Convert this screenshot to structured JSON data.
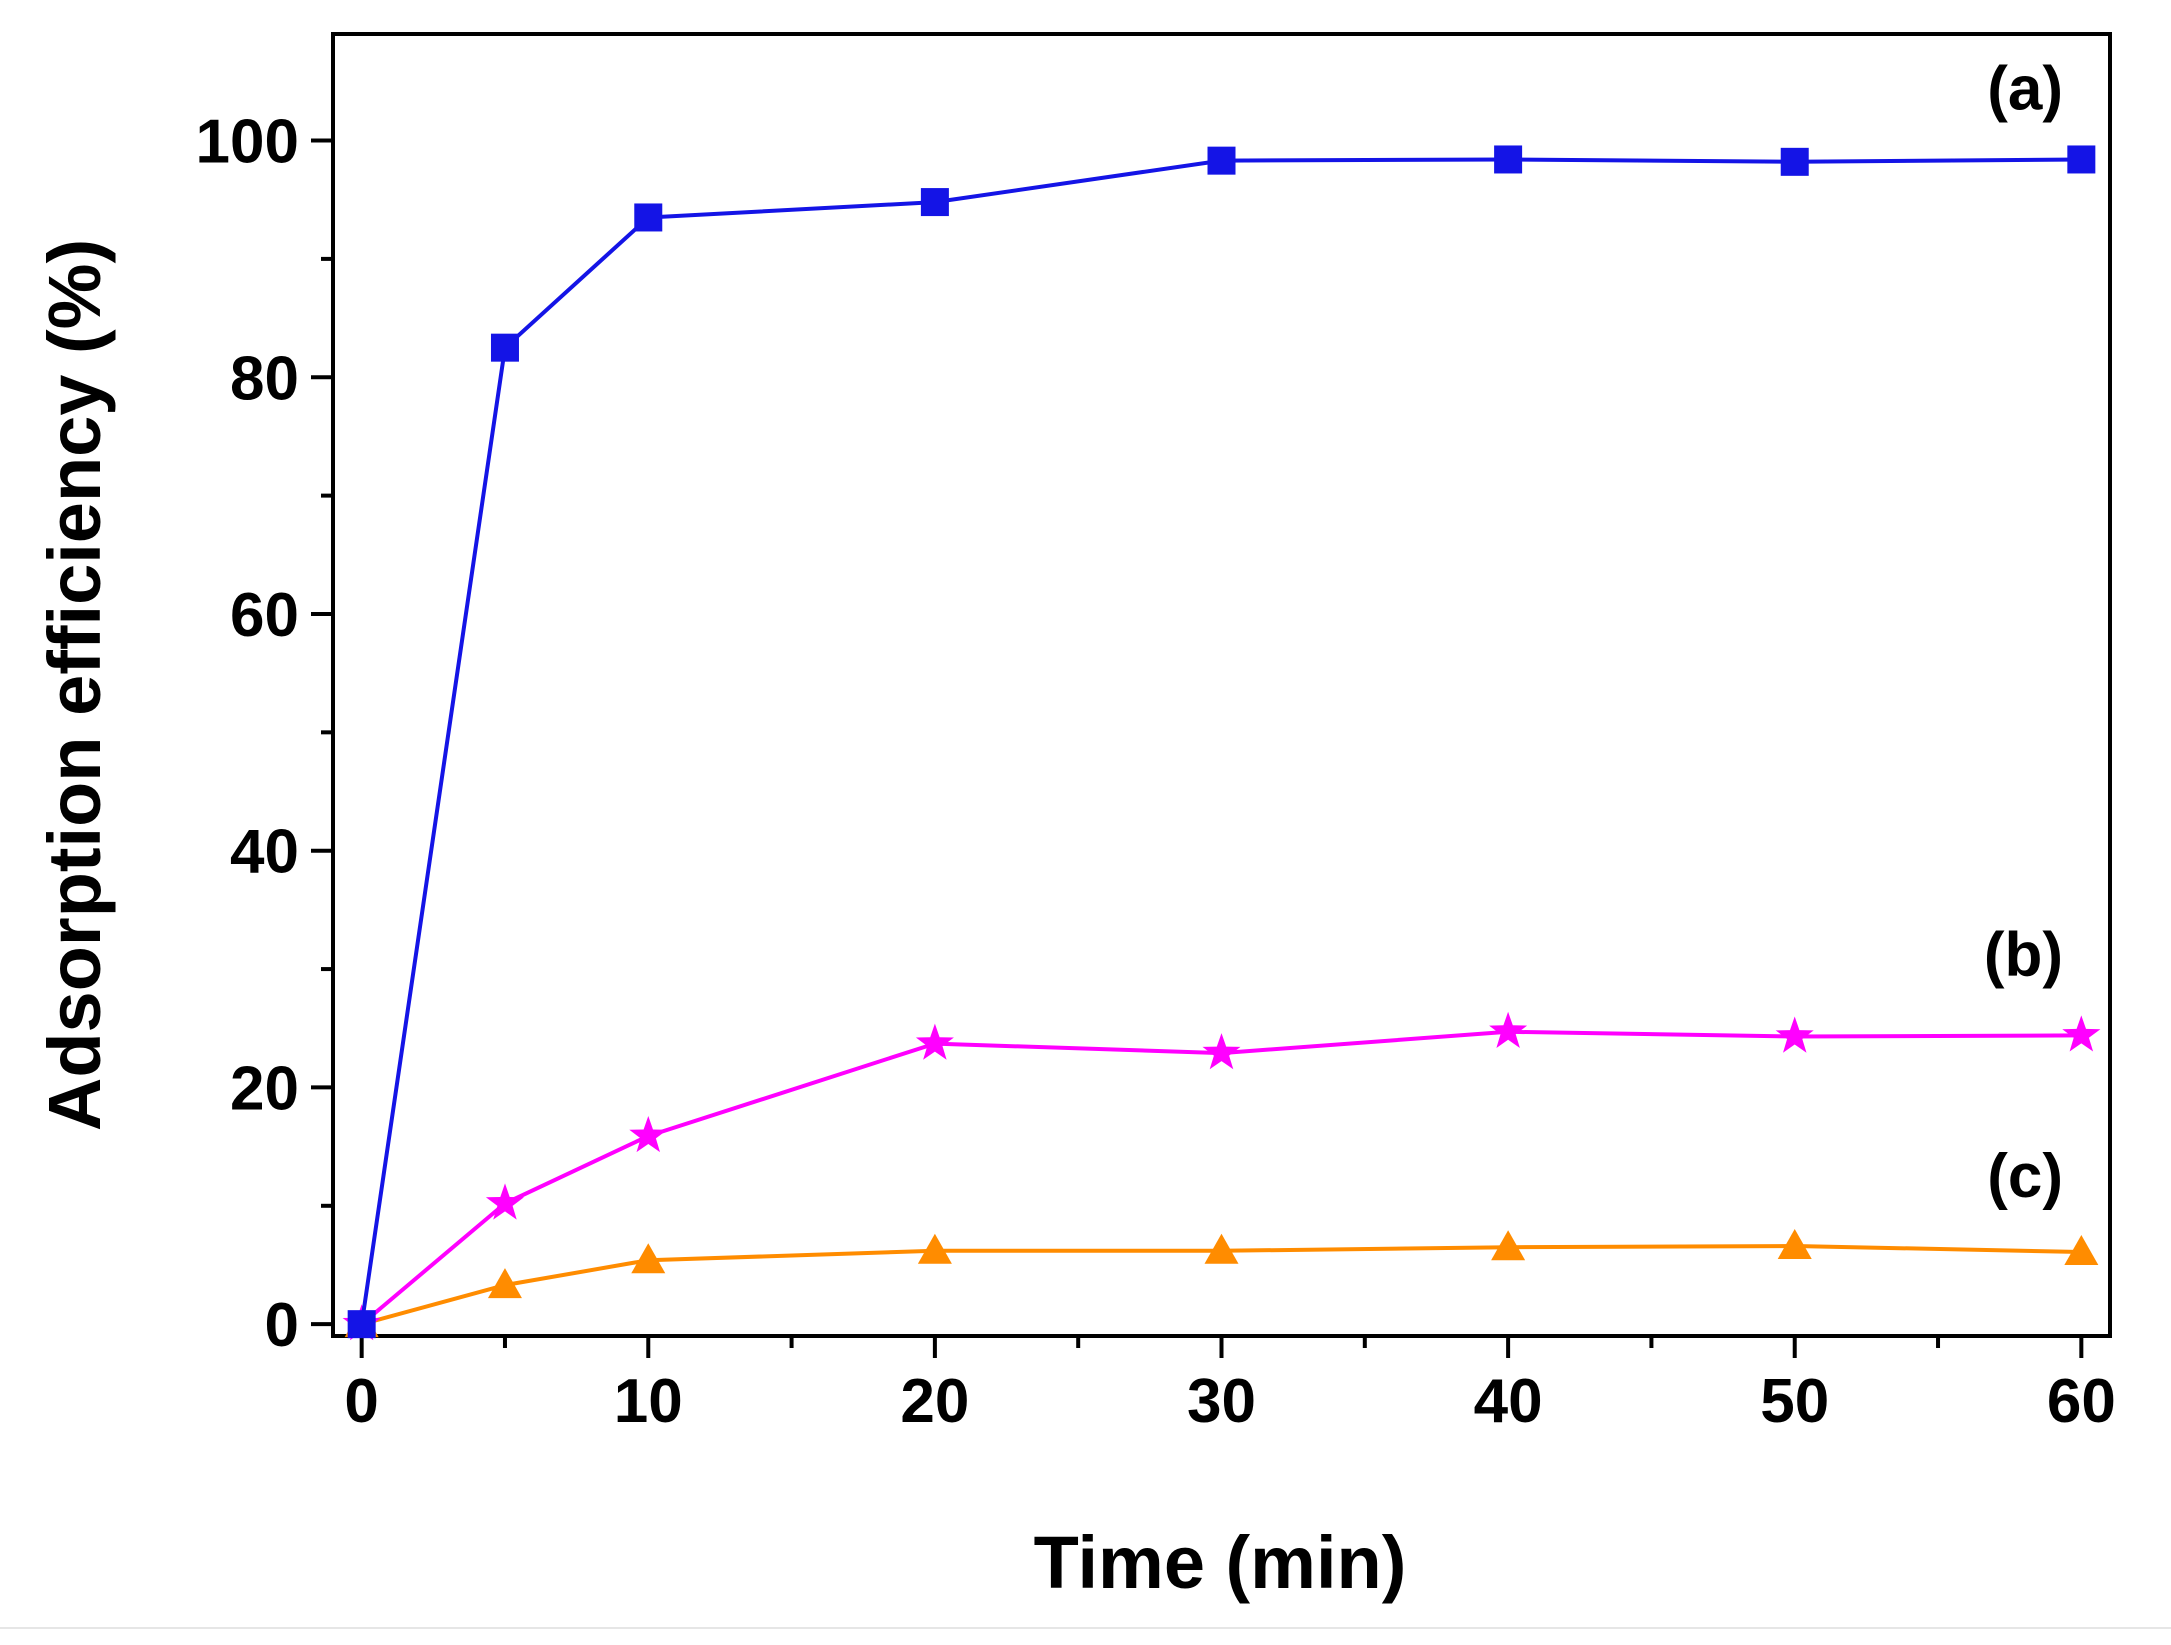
{
  "chart_data": {
    "type": "line",
    "title": "",
    "xlabel": "Time (min)",
    "ylabel": "Adsorption efficiency (%)",
    "xlim": [
      -1,
      61
    ],
    "ylim": [
      -1,
      109
    ],
    "xticks": [
      0,
      10,
      20,
      30,
      40,
      50,
      60
    ],
    "xtick_labels": [
      "0",
      "10",
      "20",
      "30",
      "40",
      "50",
      "60"
    ],
    "x_minor_ticks": [
      5,
      15,
      25,
      35,
      45,
      55
    ],
    "yticks": [
      0,
      20,
      40,
      60,
      80,
      100
    ],
    "ytick_labels": [
      "0",
      "20",
      "40",
      "60",
      "80",
      "100"
    ],
    "y_minor_ticks": [
      10,
      30,
      50,
      70,
      90
    ],
    "grid": false,
    "legend": "none",
    "x": [
      0,
      5,
      10,
      20,
      30,
      40,
      50,
      60
    ],
    "series": [
      {
        "name": "(a)",
        "color": "#1414e6",
        "marker": "square",
        "values": [
          0,
          82.5,
          93.5,
          94.8,
          98.3,
          98.4,
          98.2,
          98.4
        ]
      },
      {
        "name": "(b)",
        "color": "#ff00ff",
        "marker": "star",
        "values": [
          0,
          10.2,
          15.9,
          23.7,
          22.9,
          24.7,
          24.3,
          24.4
        ]
      },
      {
        "name": "(c)",
        "color": "#ff8c00",
        "marker": "triangle",
        "values": [
          0,
          3.3,
          5.4,
          6.2,
          6.2,
          6.5,
          6.6,
          6.1
        ]
      }
    ],
    "annotations": [
      {
        "text": "(a)",
        "series": 0,
        "position": "above right end"
      },
      {
        "text": "(b)",
        "series": 1,
        "position": "above right end"
      },
      {
        "text": "(c)",
        "series": 2,
        "position": "above right end"
      }
    ]
  }
}
